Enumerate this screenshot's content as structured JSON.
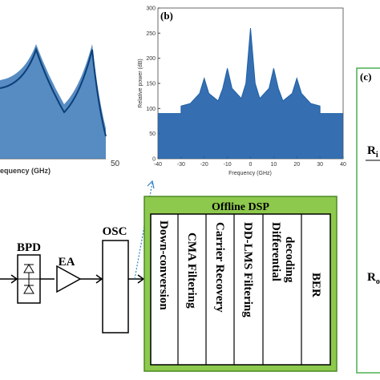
{
  "panel_a": {
    "xlabel": "equency (GHz)",
    "xtick": "50"
  },
  "chart_data": {
    "type": "line",
    "label": "(b)",
    "xlabel": "Frequency (GHz)",
    "ylabel": "Relative power (dB)",
    "xlim": [
      -40,
      40
    ],
    "ylim": [
      0,
      300
    ],
    "xticks": [
      -40,
      -30,
      -20,
      -10,
      0,
      10,
      20,
      30,
      40
    ],
    "yticks": [
      0,
      50,
      100,
      150,
      200,
      250,
      300
    ],
    "color": "#1f5fa8",
    "x": [
      -40,
      -30,
      -30,
      -26,
      -22,
      -20,
      -18,
      -14,
      -12,
      -10,
      -8,
      -4,
      -2,
      0,
      2,
      4,
      8,
      10,
      12,
      14,
      18,
      20,
      22,
      26,
      30,
      30,
      40
    ],
    "values": [
      90,
      90,
      105,
      110,
      130,
      160,
      130,
      115,
      140,
      180,
      140,
      120,
      150,
      260,
      150,
      120,
      140,
      180,
      140,
      115,
      130,
      160,
      130,
      110,
      105,
      90,
      90
    ]
  },
  "diagram": {
    "bpd": "BPD",
    "ea": "EA",
    "osc": "OSC",
    "dsp_title": "Offline DSP",
    "steps": [
      "Down-conversion",
      "CMA Filtering",
      "Carrier Recovery",
      "DD-LMS Filtering",
      "Differential",
      "decoding",
      "BER"
    ]
  },
  "panel_c": {
    "label": "(c)",
    "r": "R",
    "sub_in": "i",
    "sub_out": "o"
  }
}
